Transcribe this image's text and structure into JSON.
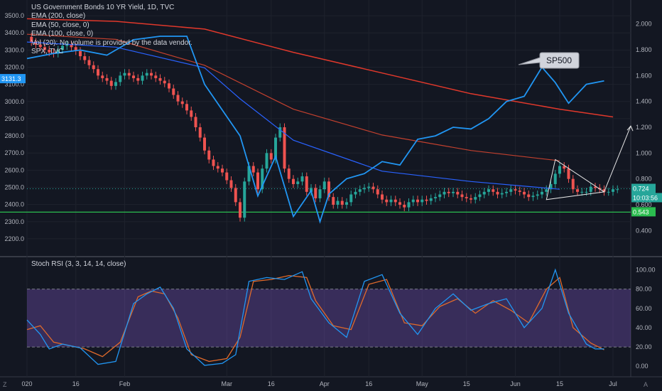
{
  "legend": {
    "title": "US Government Bonds 10 YR Yield, 1D, TVC",
    "ema200": "EMA (200, close)",
    "ema50": "EMA (50, close, 0)",
    "ema100": "EMA (100, close, 0)",
    "vol": "Vol (20): No volume is provided by the data vendor.",
    "spx": "SPX, TVC"
  },
  "corner": {
    "left_btn": "Z",
    "right_btn": "A"
  },
  "colors": {
    "background": "#131722",
    "up": "#26a69a",
    "down": "#ef5350",
    "spx_line": "#2196f3",
    "ema200": "#e0382b",
    "ema50": "#2962ff",
    "support": "#2bbd4f",
    "stoch_k": "#2196f3",
    "stoch_d": "#e06a2b",
    "stoch_band": "#7e57c2"
  },
  "chart_data": [
    {
      "type": "line",
      "title": "US Government Bonds 10 YR Yield, 1D, TVC",
      "x_ticks": [
        "020",
        "16",
        "Feb",
        "Mar",
        "16",
        "Apr",
        "16",
        "May",
        "15",
        "Jun",
        "15",
        "Jul"
      ],
      "left_axis": {
        "ticks": [
          3500,
          3400,
          3300,
          3200,
          3100,
          3000,
          2900,
          2800,
          2700,
          2600,
          2500,
          2400,
          2300,
          2200
        ],
        "ylim": [
          2150,
          3550
        ]
      },
      "right_axis": {
        "ticks": [
          "2.000",
          "1.800",
          "1.600",
          "1.400",
          "1.200",
          "1.000",
          "0.800",
          "0.600",
          "0.400"
        ],
        "ylim": [
          0.27,
          2.13
        ]
      },
      "price_labels": [
        {
          "value": "3131.3",
          "axis": "left",
          "color": "#2196f3"
        },
        {
          "value": "0.724",
          "axis": "right",
          "color": "#26a69a"
        },
        {
          "value": "10:03:56",
          "axis": "right",
          "color": "#26a69a"
        },
        {
          "value": "0.543",
          "axis": "right",
          "color": "#2bbd4f"
        }
      ],
      "series": [
        {
          "name": "SPX, TVC",
          "axis": "left",
          "x": [
            0,
            6,
            12,
            18,
            24,
            30,
            36,
            40,
            44,
            48,
            52,
            56,
            60,
            64,
            66,
            68,
            72,
            76,
            80,
            84,
            88,
            92,
            96,
            100,
            104,
            108,
            112,
            116,
            119,
            122,
            126,
            130
          ],
          "values": [
            3250,
            3280,
            3300,
            3270,
            3360,
            3380,
            3380,
            3100,
            2950,
            2800,
            2450,
            2680,
            2330,
            2480,
            2300,
            2460,
            2550,
            2580,
            2650,
            2630,
            2780,
            2800,
            2850,
            2840,
            2900,
            3000,
            3030,
            3200,
            3110,
            2990,
            3100,
            3120
          ]
        }
      ],
      "ema_200": {
        "axis": "right",
        "x": [
          0,
          20,
          40,
          60,
          80,
          100,
          120,
          132
        ],
        "values": [
          2.04,
          2.02,
          1.96,
          1.78,
          1.62,
          1.46,
          1.34,
          1.28
        ]
      },
      "ema_100": {
        "axis": "right",
        "x": [
          0,
          20,
          40,
          60,
          80,
          100,
          120
        ],
        "values": [
          1.92,
          1.88,
          1.68,
          1.34,
          1.14,
          1.02,
          0.94
        ]
      },
      "ema_50": {
        "axis": "right",
        "x": [
          0,
          20,
          40,
          48,
          60,
          80,
          100,
          120
        ],
        "values": [
          1.86,
          1.82,
          1.66,
          1.42,
          1.1,
          0.86,
          0.78,
          0.72
        ]
      },
      "candles_close": {
        "axis": "right",
        "x_step": 1,
        "values": [
          1.9,
          1.86,
          1.84,
          1.82,
          1.8,
          1.78,
          1.77,
          1.8,
          1.83,
          1.84,
          1.82,
          1.79,
          1.75,
          1.72,
          1.68,
          1.65,
          1.6,
          1.58,
          1.56,
          1.52,
          1.55,
          1.6,
          1.62,
          1.6,
          1.58,
          1.56,
          1.6,
          1.62,
          1.6,
          1.58,
          1.56,
          1.54,
          1.5,
          1.45,
          1.4,
          1.38,
          1.33,
          1.28,
          1.2,
          1.12,
          1.02,
          0.95,
          0.9,
          0.88,
          0.85,
          0.79,
          0.73,
          0.62,
          0.5,
          0.78,
          0.9,
          0.85,
          0.72,
          0.88,
          1.0,
          0.95,
          1.12,
          1.2,
          0.88,
          0.8,
          0.76,
          0.78,
          0.82,
          0.7,
          0.73,
          0.65,
          0.72,
          0.78,
          0.66,
          0.6,
          0.63,
          0.6,
          0.62,
          0.68,
          0.7,
          0.72,
          0.73,
          0.74,
          0.72,
          0.68,
          0.64,
          0.62,
          0.64,
          0.62,
          0.6,
          0.58,
          0.62,
          0.64,
          0.62,
          0.64,
          0.63,
          0.65,
          0.66,
          0.68,
          0.7,
          0.69,
          0.7,
          0.68,
          0.66,
          0.65,
          0.64,
          0.66,
          0.68,
          0.7,
          0.72,
          0.7,
          0.68,
          0.69,
          0.7,
          0.72,
          0.71,
          0.7,
          0.68,
          0.66,
          0.67,
          0.68,
          0.7,
          0.72,
          0.76,
          0.84,
          0.9,
          0.88,
          0.8,
          0.72,
          0.7,
          0.7,
          0.7,
          0.74,
          0.73,
          0.72,
          0.7,
          0.7,
          0.72,
          0.72
        ]
      },
      "support_level": {
        "axis": "right",
        "value": 0.543
      },
      "annotations": [
        {
          "type": "callout",
          "text": "SP500"
        },
        {
          "type": "triangle",
          "points_axis": "right",
          "x": [
            119,
            130,
            117
          ],
          "values": [
            0.95,
            0.7,
            0.64
          ]
        },
        {
          "type": "arrow",
          "axis": "right",
          "x": [
            130,
            136
          ],
          "values": [
            0.7,
            1.21
          ]
        }
      ]
    },
    {
      "type": "line",
      "title": "Stoch RSI (3, 3, 14, 14, close)",
      "right_axis": {
        "ticks": [
          "100.00",
          "80.00",
          "60.00",
          "40.00",
          "20.00",
          "0.00"
        ],
        "ylim": [
          -5,
          107
        ]
      },
      "band": [
        20,
        80
      ],
      "series": [
        {
          "name": "K",
          "x": [
            0,
            3,
            5,
            8,
            12,
            16,
            20,
            24,
            27,
            30,
            33,
            36,
            40,
            44,
            47,
            50,
            54,
            58,
            62,
            64,
            68,
            72,
            76,
            80,
            84,
            88,
            92,
            96,
            100,
            104,
            108,
            112,
            116,
            119,
            122,
            126,
            128,
            130
          ],
          "values": [
            48,
            33,
            18,
            23,
            19,
            2,
            5,
            65,
            75,
            82,
            60,
            18,
            1,
            3,
            12,
            88,
            92,
            90,
            98,
            70,
            45,
            30,
            88,
            95,
            55,
            33,
            60,
            75,
            58,
            65,
            70,
            40,
            60,
            100,
            55,
            23,
            18,
            18
          ]
        },
        {
          "name": "D",
          "x": [
            0,
            3,
            6,
            9,
            13,
            17,
            21,
            25,
            28,
            31,
            34,
            37,
            41,
            45,
            48,
            51,
            55,
            59,
            63,
            65,
            69,
            73,
            77,
            81,
            85,
            89,
            93,
            97,
            101,
            105,
            109,
            113,
            117,
            120,
            123,
            127,
            130
          ],
          "values": [
            38,
            42,
            25,
            22,
            18,
            10,
            25,
            72,
            78,
            75,
            50,
            12,
            5,
            8,
            30,
            88,
            90,
            94,
            92,
            68,
            42,
            38,
            85,
            90,
            45,
            42,
            62,
            70,
            55,
            68,
            58,
            45,
            80,
            92,
            40,
            24,
            17
          ]
        }
      ]
    }
  ]
}
